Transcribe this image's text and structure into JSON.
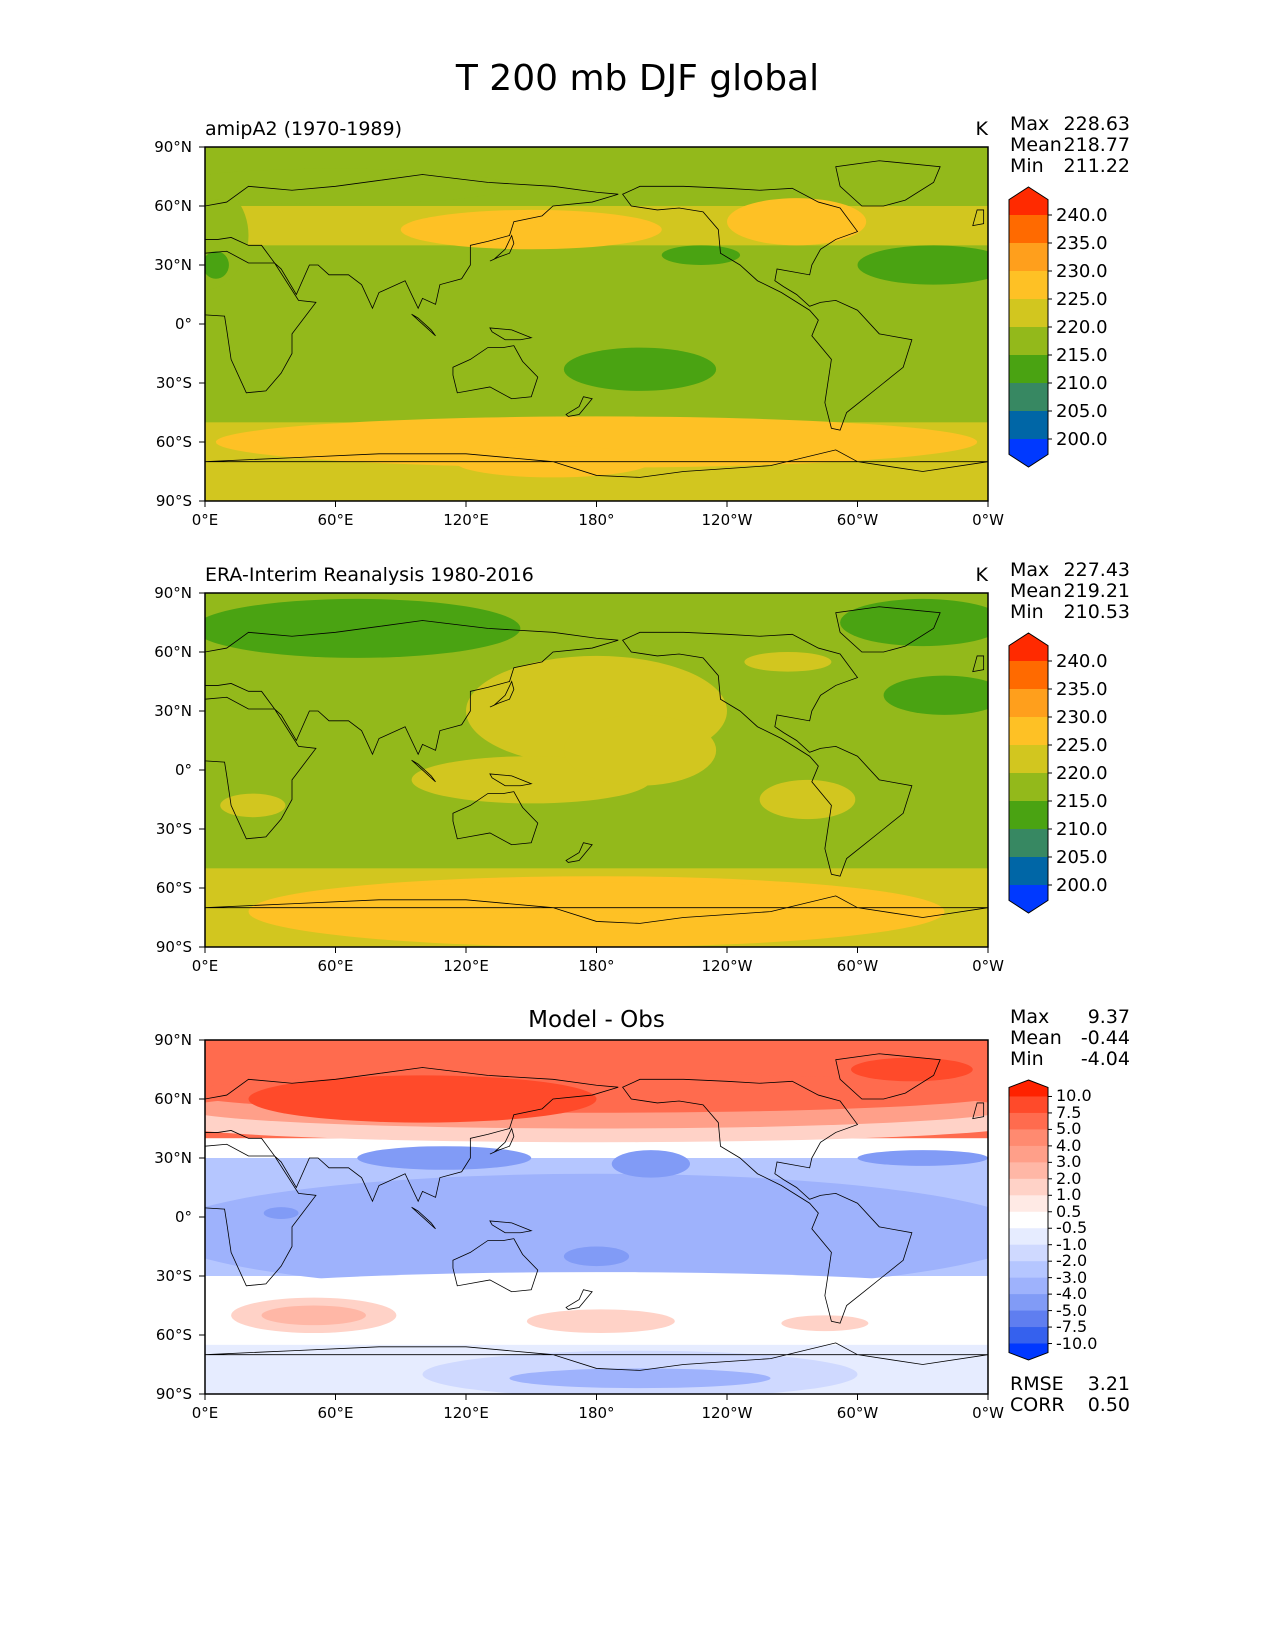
{
  "figure_title": "T 200 mb DJF global",
  "chart_data": [
    {
      "type": "heatmap",
      "title": "amipA2 (1970-1989)",
      "units": "K",
      "stats": {
        "max_label": "Max",
        "max": "228.63",
        "mean_label": "Mean",
        "mean": "218.77",
        "min_label": "Min",
        "min": "211.22"
      },
      "x_ticks": [
        "0°E",
        "60°E",
        "120°E",
        "180°",
        "120°W",
        "60°W",
        "0°W"
      ],
      "y_ticks": [
        "90°N",
        "60°N",
        "30°N",
        "0°",
        "30°S",
        "60°S",
        "90°S"
      ],
      "xlim": [
        0,
        360
      ],
      "ylim": [
        -90,
        90
      ],
      "colorbar": {
        "levels": [
          "240.0",
          "235.0",
          "230.0",
          "225.0",
          "220.0",
          "215.0",
          "210.0",
          "205.0",
          "200.0"
        ],
        "colors": [
          "#ff2a00",
          "#ff6a00",
          "#ff9f1c",
          "#fec125",
          "#d2c61f",
          "#93b91b",
          "#4aa312",
          "#378862",
          "#0066a6",
          "#0039ff"
        ],
        "extend": "both"
      }
    },
    {
      "type": "heatmap",
      "title": "ERA-Interim Reanalysis 1980-2016",
      "units": "K",
      "stats": {
        "max_label": "Max",
        "max": "227.43",
        "mean_label": "Mean",
        "mean": "219.21",
        "min_label": "Min",
        "min": "210.53"
      },
      "x_ticks": [
        "0°E",
        "60°E",
        "120°E",
        "180°",
        "120°W",
        "60°W",
        "0°W"
      ],
      "y_ticks": [
        "90°N",
        "60°N",
        "30°N",
        "0°",
        "30°S",
        "60°S",
        "90°S"
      ],
      "xlim": [
        0,
        360
      ],
      "ylim": [
        -90,
        90
      ],
      "colorbar": {
        "levels": [
          "240.0",
          "235.0",
          "230.0",
          "225.0",
          "220.0",
          "215.0",
          "210.0",
          "205.0",
          "200.0"
        ],
        "colors": [
          "#ff2a00",
          "#ff6a00",
          "#ff9f1c",
          "#fec125",
          "#d2c61f",
          "#93b91b",
          "#4aa312",
          "#378862",
          "#0066a6",
          "#0039ff"
        ],
        "extend": "both"
      }
    },
    {
      "type": "heatmap",
      "title": "Model - Obs",
      "stats": {
        "max_label": "Max",
        "max": "9.37",
        "mean_label": "Mean",
        "mean": "-0.44",
        "min_label": "Min",
        "min": "-4.04"
      },
      "metrics": {
        "rmse_label": "RMSE",
        "rmse": "3.21",
        "corr_label": "CORR",
        "corr": "0.50"
      },
      "x_ticks": [
        "0°E",
        "60°E",
        "120°E",
        "180°",
        "120°W",
        "60°W",
        "0°W"
      ],
      "y_ticks": [
        "90°N",
        "60°N",
        "30°N",
        "0°",
        "30°S",
        "60°S",
        "90°S"
      ],
      "xlim": [
        0,
        360
      ],
      "ylim": [
        -90,
        90
      ],
      "colorbar": {
        "levels": [
          "10.0",
          "7.5",
          "5.0",
          "4.0",
          "3.0",
          "2.0",
          "1.0",
          "0.5",
          "-0.5",
          "-1.0",
          "-2.0",
          "-3.0",
          "-4.0",
          "-5.0",
          "-7.5",
          "-10.0"
        ],
        "colors": [
          "#ff2200",
          "#ff4a2a",
          "#ff6b4e",
          "#ff8a70",
          "#ff9f89",
          "#ffb7a6",
          "#ffd2c7",
          "#ffeae5",
          "#ffffff",
          "#e6ecff",
          "#cfd9ff",
          "#b5c6ff",
          "#9eb2fc",
          "#819bf6",
          "#5f7ef0",
          "#3561ee",
          "#0038ff"
        ],
        "extend": "both"
      }
    }
  ]
}
